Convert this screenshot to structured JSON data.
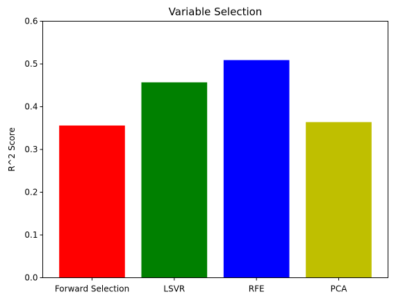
{
  "chart_data": {
    "type": "bar",
    "title": "Variable Selection",
    "xlabel": "",
    "ylabel": "R^2 Score",
    "categories": [
      "Forward Selection",
      "LSVR",
      "RFE",
      "PCA"
    ],
    "values": [
      0.356,
      0.457,
      0.509,
      0.364
    ],
    "colors": [
      "#ff0000",
      "#008000",
      "#0000ff",
      "#bfbf00"
    ],
    "ylim": [
      0,
      0.6
    ],
    "yticks": [
      "0.0",
      "0.1",
      "0.2",
      "0.3",
      "0.4",
      "0.5",
      "0.6"
    ],
    "grid": false,
    "legend": "none"
  }
}
